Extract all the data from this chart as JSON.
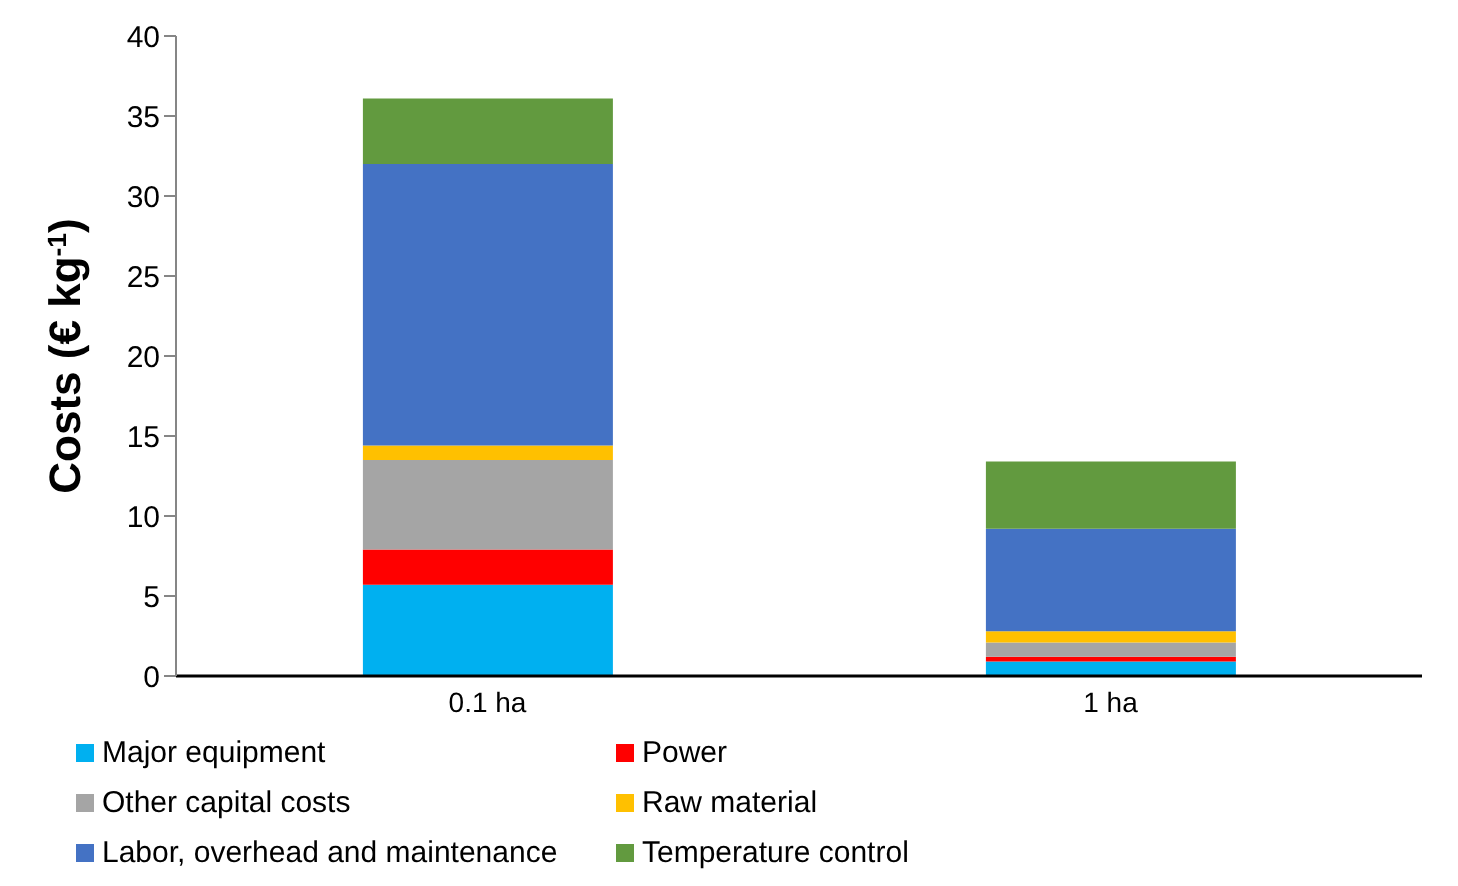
{
  "chart_data": {
    "type": "bar",
    "stacked": true,
    "ylabel": "Costs (€ kg$^{-1}$)",
    "categories": [
      "0.1 ha",
      "1 ha"
    ],
    "series": [
      {
        "name": "Major equipment",
        "color": "#00b0f0",
        "values": [
          5.7,
          0.9
        ]
      },
      {
        "name": "Power",
        "color": "#ff0000",
        "values": [
          2.2,
          0.3
        ]
      },
      {
        "name": "Other capital costs",
        "color": "#a5a5a5",
        "values": [
          5.6,
          0.9
        ]
      },
      {
        "name": "Raw material",
        "color": "#ffc000",
        "values": [
          0.9,
          0.7
        ]
      },
      {
        "name": "Labor, overhead and maintenance",
        "color": "#4472c4",
        "values": [
          17.6,
          6.4
        ]
      },
      {
        "name": "Temperature control",
        "color": "#629a3f",
        "values": [
          4.1,
          4.2
        ]
      }
    ],
    "ylim": [
      0,
      40
    ],
    "yticks": [
      0,
      5,
      10,
      15,
      20,
      25,
      30,
      35,
      40
    ],
    "grid": false,
    "legend": "bottom"
  }
}
